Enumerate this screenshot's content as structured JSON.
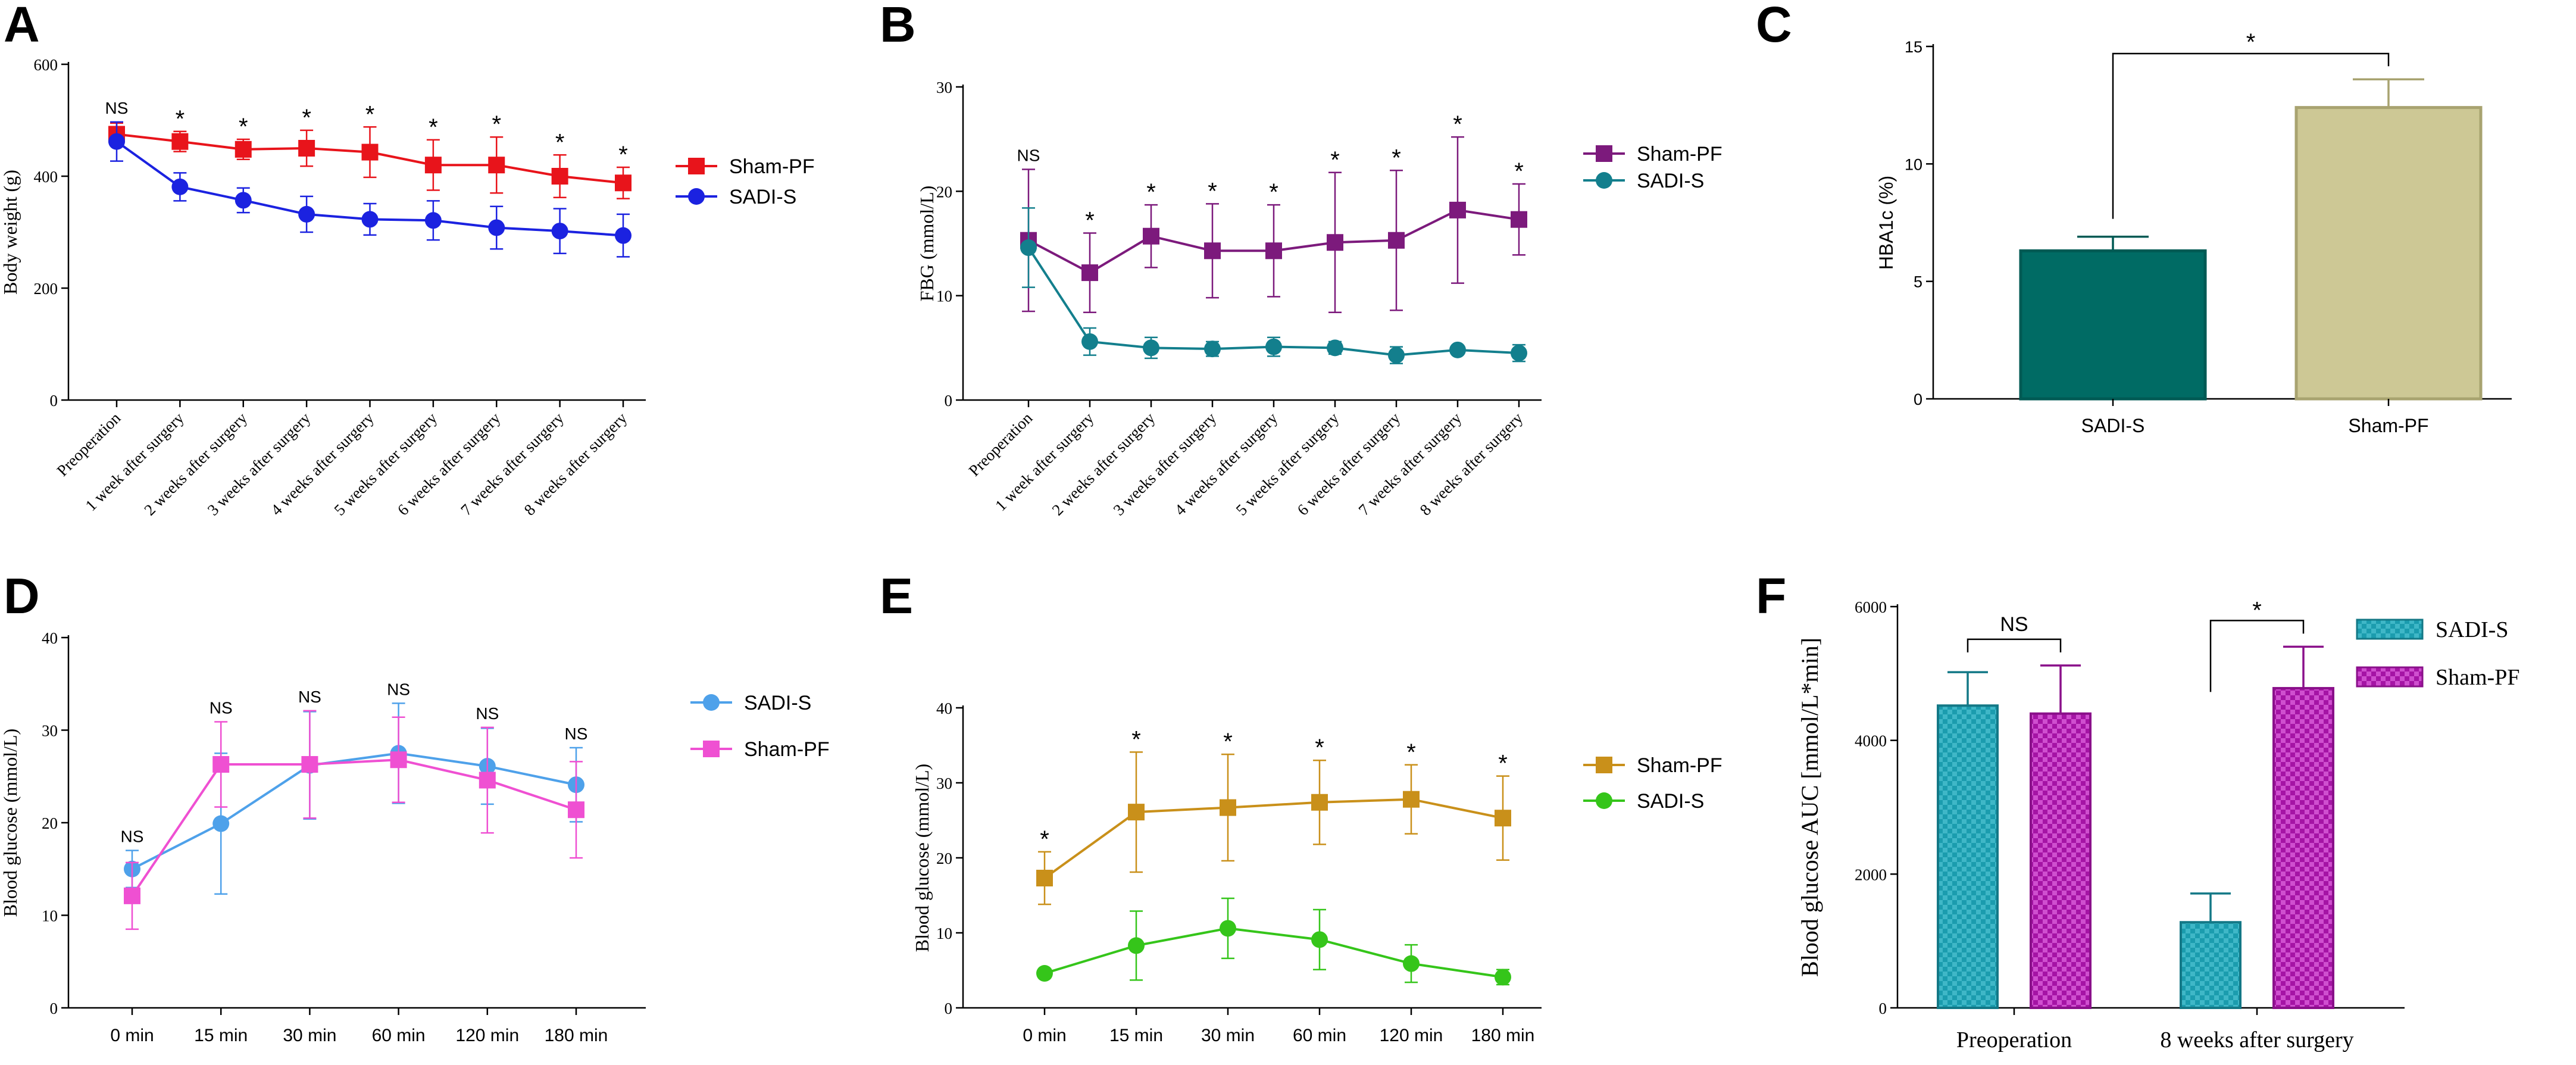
{
  "colors": {
    "shamA": "#e8141b",
    "sadiA": "#1b22e0",
    "shamB": "#7c1a7c",
    "sadiB": "#137f8d",
    "sadiC": "#006b64",
    "shamC": "#cdc895",
    "sadiD": "#4ea1ea",
    "shamD": "#ef50d2",
    "shamE": "#c9901a",
    "sadiE": "#35c51a",
    "sadiF": "#1b9cae",
    "shamF": "#b019b0"
  },
  "chart_data": [
    {
      "panel": "A",
      "type": "line",
      "xlabel": "",
      "ylabel": "Body weight (g)",
      "ylim": [
        0,
        600
      ],
      "yticks": [
        "0",
        "200",
        "400",
        "600"
      ],
      "categories": [
        "Preoperation",
        "1 week after surgery",
        "2 weeks after surgery",
        "3 weeks after surgery",
        "4 weeks after surgery",
        "5 weeks after surgery",
        "6 weeks after surgery",
        "7 weeks after surgery",
        "8 weeks after surgery"
      ],
      "significance": [
        "NS",
        "*",
        "*",
        "*",
        "*",
        "*",
        "*",
        "*",
        "*"
      ],
      "legend": "right",
      "series": [
        {
          "name": "Sham-PF",
          "marker": "square",
          "color_key": "shamA",
          "values": [
            475,
            462,
            448,
            450,
            443,
            420,
            420,
            400,
            388
          ],
          "err": [
            20,
            18,
            18,
            32,
            45,
            45,
            50,
            38,
            28
          ]
        },
        {
          "name": "SADI-S",
          "marker": "circle",
          "color_key": "sadiA",
          "values": [
            462,
            381,
            357,
            332,
            323,
            321,
            308,
            302,
            294
          ],
          "err": [
            35,
            25,
            22,
            32,
            28,
            35,
            38,
            40,
            38
          ]
        }
      ]
    },
    {
      "panel": "B",
      "type": "line",
      "xlabel": "",
      "ylabel": "FBG (mmol/L)",
      "ylim": [
        0,
        30
      ],
      "yticks": [
        "0",
        "10",
        "20",
        "30"
      ],
      "categories": [
        "Preoperation",
        "1 week after surgery",
        "2 weeks after surgery",
        "3 weeks after surgery",
        "4 weeks after surgery",
        "5 weeks after surgery",
        "6 weeks after surgery",
        "7 weeks after surgery",
        "8 weeks after surgery"
      ],
      "significance": [
        "NS",
        "*",
        "*",
        "*",
        "*",
        "*",
        "*",
        "*",
        "*"
      ],
      "legend": "right",
      "series": [
        {
          "name": "Sham-PF",
          "marker": "square",
          "color_key": "shamB",
          "values": [
            15.3,
            12.2,
            15.7,
            14.3,
            14.3,
            15.1,
            15.3,
            18.2,
            17.3
          ],
          "err": [
            6.8,
            3.8,
            3.0,
            4.5,
            4.4,
            6.7,
            6.7,
            7.0,
            3.4
          ]
        },
        {
          "name": "SADI-S",
          "marker": "circle",
          "color_key": "sadiB",
          "values": [
            14.6,
            5.6,
            5.0,
            4.9,
            5.1,
            5.0,
            4.3,
            4.8,
            4.5
          ],
          "err": [
            3.8,
            1.3,
            1.0,
            0.7,
            0.9,
            0.6,
            0.8,
            0.4,
            0.8
          ]
        }
      ]
    },
    {
      "panel": "C",
      "type": "bar",
      "xlabel": "",
      "ylabel": "HBA1c (%)",
      "ylim": [
        0,
        15
      ],
      "yticks": [
        "0",
        "5",
        "10",
        "15"
      ],
      "categories": [
        "SADI-S",
        "Sham-PF"
      ],
      "values": [
        6.3,
        12.4
      ],
      "err": [
        0.6,
        1.2
      ],
      "color_keys": [
        "sadiC",
        "shamC"
      ],
      "significance": [
        "*"
      ]
    },
    {
      "panel": "D",
      "type": "line",
      "xlabel": "",
      "ylabel": "Blood glucose (mmol/L)",
      "ylim": [
        0,
        40
      ],
      "yticks": [
        "0",
        "10",
        "20",
        "30",
        "40"
      ],
      "categories": [
        "0 min",
        "15 min",
        "30 min",
        "60 min",
        "120 min",
        "180 min"
      ],
      "significance": [
        "NS",
        "NS",
        "NS",
        "NS",
        "NS",
        "NS"
      ],
      "legend": "right",
      "series": [
        {
          "name": "SADI-S",
          "marker": "circle",
          "color_key": "sadiD",
          "values": [
            15.0,
            19.9,
            26.2,
            27.5,
            26.1,
            24.1
          ],
          "err": [
            2.0,
            7.6,
            5.8,
            5.4,
            4.1,
            4.0
          ]
        },
        {
          "name": "Sham-PF",
          "marker": "square",
          "color_key": "shamD",
          "values": [
            12.1,
            26.3,
            26.3,
            26.8,
            24.6,
            21.4
          ],
          "err": [
            3.6,
            4.6,
            5.8,
            4.6,
            5.7,
            5.2
          ]
        }
      ]
    },
    {
      "panel": "E",
      "type": "line",
      "xlabel": "",
      "ylabel": "Blood glucose (mmol/L)",
      "ylim": [
        0,
        40
      ],
      "yticks": [
        "0",
        "10",
        "20",
        "30",
        "40"
      ],
      "categories": [
        "0 min",
        "15 min",
        "30 min",
        "60 min",
        "120 min",
        "180 min"
      ],
      "significance": [
        "*",
        "*",
        "*",
        "*",
        "*",
        "*"
      ],
      "legend": "right",
      "series": [
        {
          "name": "Sham-PF",
          "marker": "square",
          "color_key": "shamE",
          "values": [
            17.3,
            26.1,
            26.7,
            27.4,
            27.8,
            25.3
          ],
          "err": [
            3.5,
            8.0,
            7.1,
            5.6,
            4.6,
            5.6
          ]
        },
        {
          "name": "SADI-S",
          "marker": "circle",
          "color_key": "sadiE",
          "values": [
            4.6,
            8.3,
            10.6,
            9.1,
            5.9,
            4.1
          ],
          "err": [
            0.3,
            4.6,
            4.0,
            4.0,
            2.5,
            1.0
          ]
        }
      ]
    },
    {
      "panel": "F",
      "type": "bar",
      "xlabel": "",
      "ylabel": "Blood glucose AUC [mmol/L*min]",
      "ylim": [
        0,
        6000
      ],
      "yticks": [
        "0",
        "2000",
        "4000",
        "6000"
      ],
      "categories": [
        "Preoperation",
        "8 weeks after surgery"
      ],
      "significance": [
        "NS",
        "*"
      ],
      "legend": "top-right",
      "series": [
        {
          "name": "SADI-S",
          "color_key": "sadiF",
          "values": [
            4520,
            1280
          ],
          "err": [
            500,
            430
          ]
        },
        {
          "name": "Sham-PF",
          "color_key": "shamF",
          "values": [
            4400,
            4780
          ],
          "err": [
            720,
            620
          ]
        }
      ]
    }
  ]
}
